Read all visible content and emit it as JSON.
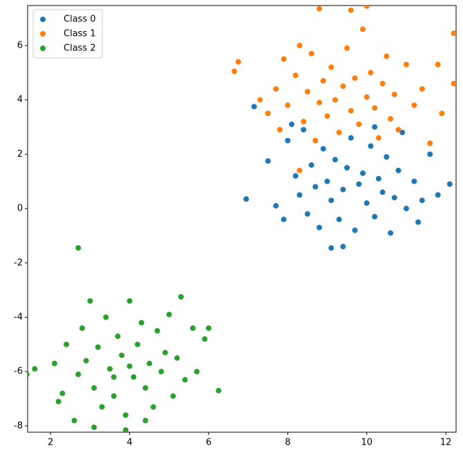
{
  "chart_data": {
    "type": "scatter",
    "xlim": [
      1.42,
      12.26
    ],
    "ylim": [
      -8.23,
      7.47
    ],
    "xticks": [
      2,
      4,
      6,
      8,
      10,
      12
    ],
    "yticks": [
      -8,
      -6,
      -4,
      -2,
      0,
      2,
      4,
      6
    ],
    "legend": "upper left",
    "series": [
      {
        "name": "Class 0",
        "color": "#1f77b4",
        "x": [
          6.95,
          7.15,
          9.1,
          12.1,
          7.5,
          7.7,
          7.9,
          8.0,
          8.2,
          8.3,
          8.4,
          8.5,
          8.6,
          8.7,
          8.8,
          8.9,
          9.0,
          9.1,
          9.2,
          9.3,
          9.4,
          9.5,
          9.6,
          9.7,
          9.8,
          9.9,
          10.0,
          10.1,
          10.2,
          10.3,
          10.4,
          10.5,
          10.6,
          10.7,
          10.8,
          10.9,
          11.0,
          11.2,
          11.4,
          11.6,
          11.8,
          9.4,
          8.1,
          10.2,
          11.3
        ],
        "values": [
          0.35,
          3.75,
          -1.45,
          0.9,
          1.75,
          0.1,
          -0.4,
          2.5,
          1.2,
          0.5,
          2.9,
          -0.2,
          1.6,
          0.8,
          -0.7,
          2.2,
          1.0,
          0.3,
          1.8,
          -0.4,
          0.7,
          1.5,
          2.6,
          -0.8,
          0.9,
          1.3,
          0.2,
          2.3,
          -0.3,
          1.1,
          0.6,
          1.9,
          -0.9,
          0.4,
          1.4,
          2.8,
          0.0,
          1.0,
          0.3,
          2.0,
          0.5,
          -1.4,
          3.1,
          3.0,
          -0.5
        ]
      },
      {
        "name": "Class 1",
        "color": "#ff7f0e",
        "x": [
          6.65,
          6.75,
          12.2,
          10.0,
          8.8,
          9.6,
          7.3,
          7.5,
          7.7,
          7.8,
          7.9,
          8.0,
          8.2,
          8.3,
          8.4,
          8.5,
          8.6,
          8.7,
          8.8,
          8.9,
          9.0,
          9.1,
          9.2,
          9.3,
          9.4,
          9.5,
          9.6,
          9.7,
          9.8,
          9.9,
          10.0,
          10.1,
          10.2,
          10.3,
          10.4,
          10.5,
          10.6,
          10.7,
          10.8,
          11.0,
          11.2,
          11.4,
          11.6,
          11.9,
          12.2,
          11.8,
          8.3
        ],
        "values": [
          5.05,
          5.4,
          6.45,
          7.45,
          7.35,
          7.3,
          4.0,
          3.5,
          4.4,
          2.9,
          5.5,
          3.8,
          4.9,
          6.0,
          3.2,
          4.3,
          5.7,
          2.5,
          3.9,
          4.7,
          3.4,
          5.2,
          4.0,
          2.8,
          4.5,
          5.9,
          3.6,
          4.8,
          3.1,
          6.6,
          4.1,
          5.0,
          3.7,
          2.6,
          4.6,
          5.6,
          3.3,
          4.2,
          2.9,
          5.3,
          3.8,
          4.4,
          2.4,
          3.5,
          4.6,
          5.3,
          1.4
        ]
      },
      {
        "name": "Class 2",
        "color": "#2ca02c",
        "x": [
          2.7,
          1.4,
          6.25,
          3.1,
          1.6,
          2.1,
          2.3,
          2.4,
          2.6,
          2.7,
          2.8,
          2.9,
          3.0,
          3.1,
          3.2,
          3.3,
          3.4,
          3.5,
          3.6,
          3.7,
          3.8,
          3.9,
          4.0,
          4.1,
          4.2,
          4.3,
          4.4,
          4.5,
          4.6,
          4.7,
          4.8,
          4.9,
          5.0,
          5.1,
          5.2,
          5.3,
          5.4,
          5.6,
          5.7,
          5.9,
          6.0,
          3.9,
          4.4,
          2.2,
          3.6,
          4.0
        ],
        "values": [
          -1.45,
          -6.1,
          -6.7,
          -8.05,
          -5.9,
          -5.7,
          -6.8,
          -5.0,
          -7.8,
          -6.1,
          -4.4,
          -5.6,
          -3.4,
          -6.6,
          -5.1,
          -7.3,
          -4.0,
          -5.9,
          -6.9,
          -4.7,
          -5.4,
          -7.6,
          -3.4,
          -6.2,
          -5.0,
          -4.2,
          -6.6,
          -5.7,
          -7.3,
          -4.5,
          -6.0,
          -5.3,
          -3.9,
          -6.9,
          -5.5,
          -3.25,
          -6.3,
          -4.4,
          -6.0,
          -4.8,
          -4.4,
          -8.15,
          -7.8,
          -7.1,
          -6.2,
          -5.8
        ]
      }
    ]
  }
}
